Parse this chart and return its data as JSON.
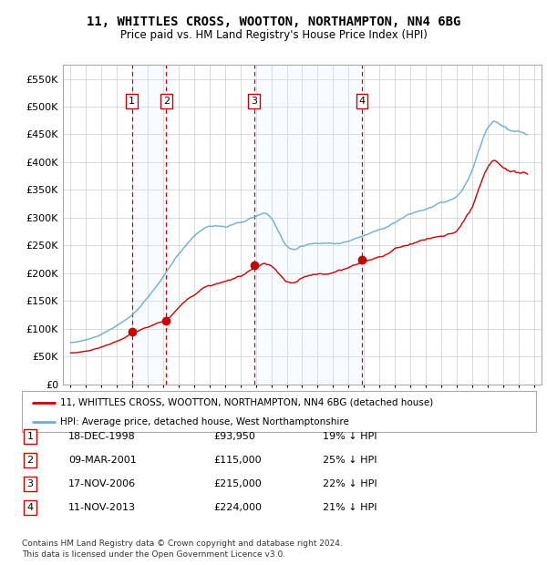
{
  "title": "11, WHITTLES CROSS, WOOTTON, NORTHAMPTON, NN4 6BG",
  "subtitle": "Price paid vs. HM Land Registry's House Price Index (HPI)",
  "legend_line1": "11, WHITTLES CROSS, WOOTTON, NORTHAMPTON, NN4 6BG (detached house)",
  "legend_line2": "HPI: Average price, detached house, West Northamptonshire",
  "footnote": "Contains HM Land Registry data © Crown copyright and database right 2024.\nThis data is licensed under the Open Government Licence v3.0.",
  "transactions": [
    {
      "num": 1,
      "date": "18-DEC-1998",
      "price": 93950,
      "pct": "19% ↓ HPI",
      "year": 1998.96
    },
    {
      "num": 2,
      "date": "09-MAR-2001",
      "price": 115000,
      "pct": "25% ↓ HPI",
      "year": 2001.19
    },
    {
      "num": 3,
      "date": "17-NOV-2006",
      "price": 215000,
      "pct": "22% ↓ HPI",
      "year": 2006.88
    },
    {
      "num": 4,
      "date": "11-NOV-2013",
      "price": 224000,
      "pct": "21% ↓ HPI",
      "year": 2013.86
    }
  ],
  "hpi_color": "#6baed6",
  "price_color": "#cc0000",
  "shade_color": "#ddeeff",
  "grid_color": "#cccccc",
  "ylim": [
    0,
    575000
  ],
  "yticks": [
    0,
    50000,
    100000,
    150000,
    200000,
    250000,
    300000,
    350000,
    400000,
    450000,
    500000,
    550000
  ],
  "xmin": 1994.5,
  "xmax": 2025.5,
  "background_color": "#ffffff"
}
